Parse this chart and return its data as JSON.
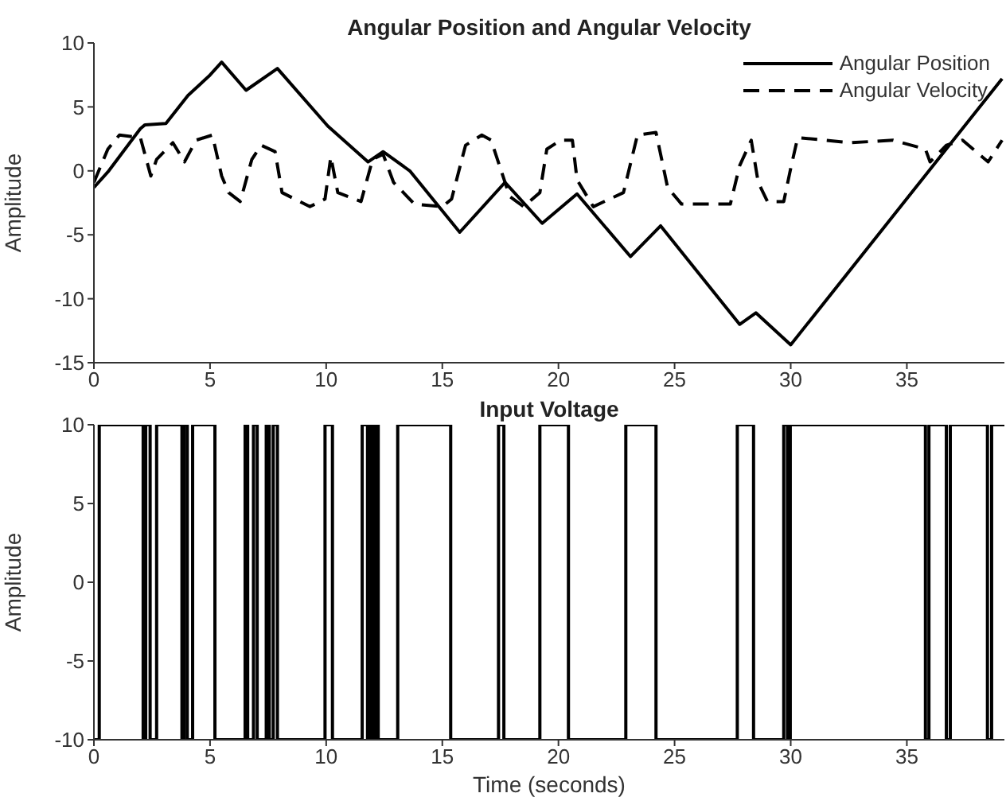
{
  "chart_data": [
    {
      "type": "line",
      "title": "Angular Position and Angular Velocity",
      "ylabel": "Amplitude",
      "xlim": [
        0,
        39.2
      ],
      "xticks": [
        0,
        5,
        10,
        15,
        20,
        25,
        30,
        35
      ],
      "ylim": [
        -15,
        10
      ],
      "yticks": [
        -15,
        -10,
        -5,
        0,
        5,
        10
      ],
      "legend": "top right",
      "series": [
        {
          "name": "Angular Position",
          "color": "#000000",
          "line_style": "solid",
          "x": [
            0,
            0.64,
            2,
            2.2,
            3.1,
            4.05,
            4.95,
            5.5,
            6.55,
            7.9,
            10.07,
            11.8,
            12.45,
            13.6,
            15.75,
            17.7,
            19.3,
            20.8,
            23.1,
            24.4,
            27.8,
            28.5,
            30,
            39.1
          ],
          "values": [
            -1.3,
            0,
            3.3,
            3.6,
            3.7,
            5.9,
            7.4,
            8.5,
            6.3,
            8,
            3.5,
            0.7,
            1.5,
            0,
            -4.8,
            -0.9,
            -4.1,
            -1.8,
            -6.7,
            -4.3,
            -12,
            -11.1,
            -13.6,
            7.2
          ]
        },
        {
          "name": "Angular Velocity",
          "color": "#000000",
          "line_style": "dashed",
          "x": [
            0,
            0.6,
            1.1,
            2,
            2.45,
            2.7,
            3.4,
            3.9,
            4.4,
            5.1,
            5.5,
            5.8,
            6.3,
            6.8,
            7.2,
            7.8,
            8.1,
            9.3,
            9.95,
            10.2,
            10.5,
            11.5,
            12,
            12.45,
            12.9,
            13.8,
            15,
            15.4,
            16,
            16.7,
            17.1,
            17.9,
            18.5,
            19.2,
            19.5,
            20.1,
            20.6,
            20.8,
            21.5,
            22.8,
            23.4,
            24.2,
            24.7,
            25.3,
            27.4,
            27.8,
            28.3,
            28.6,
            29,
            29.7,
            30,
            30.3,
            32.6,
            34.4,
            35.8,
            36,
            36.7,
            37.4,
            38.5,
            39.1
          ],
          "values": [
            -0.9,
            1.7,
            2.8,
            2.6,
            -0.4,
            0.9,
            2.2,
            0.7,
            2.4,
            2.8,
            -0.4,
            -1.7,
            -2.4,
            0.9,
            2,
            1.5,
            -1.7,
            -2.8,
            -2.2,
            1.1,
            -1.7,
            -2.4,
            0.9,
            1.3,
            -0.9,
            -2.6,
            -2.8,
            -2.2,
            2,
            2.8,
            2.4,
            -2,
            -2.8,
            -1.7,
            1.7,
            2.4,
            2.4,
            -0.7,
            -2.8,
            -1.7,
            2.8,
            3,
            -1.3,
            -2.6,
            -2.6,
            0.4,
            2.4,
            -0.9,
            -2.4,
            -2.4,
            0.2,
            2.6,
            2.2,
            2.4,
            1.7,
            0.7,
            2,
            2.4,
            0.7,
            2.4
          ]
        }
      ]
    },
    {
      "type": "step",
      "title": "Input Voltage",
      "xlabel": "Time (seconds)",
      "ylabel": "Amplitude",
      "xlim": [
        0,
        39.2
      ],
      "xticks": [
        0,
        5,
        10,
        15,
        20,
        25,
        30,
        35
      ],
      "ylim": [
        -10,
        10
      ],
      "yticks": [
        -10,
        -5,
        0,
        5,
        10
      ],
      "series": [
        {
          "color": "#000000",
          "x": [
            0,
            0.23,
            2.12,
            2.23,
            2.42,
            2.7,
            3.79,
            3.88,
            4.02,
            4.25,
            5.21,
            6.51,
            6.62,
            6.87,
            7.03,
            7.42,
            7.55,
            7.72,
            7.9,
            9.95,
            10.27,
            11.55,
            11.78,
            11.89,
            11.99,
            12.12,
            12.24,
            13.08,
            15.36,
            17.42,
            17.65,
            19.2,
            20.43,
            22.9,
            24.2,
            27.7,
            28.4,
            29.7,
            29.86,
            29.98,
            35.8,
            35.95,
            36.7,
            36.87,
            38.47,
            38.65,
            39.2
          ],
          "values": [
            -10,
            10,
            -10,
            10,
            -10,
            10,
            -10,
            10,
            -10,
            10,
            -10,
            10,
            -10,
            10,
            -10,
            10,
            -10,
            10,
            -10,
            10,
            -10,
            10,
            -10,
            10,
            -10,
            10,
            -10,
            10,
            -10,
            10,
            -10,
            10,
            -10,
            10,
            -10,
            10,
            -10,
            10,
            -10,
            10,
            -10,
            10,
            -10,
            10,
            -10,
            10,
            10
          ]
        }
      ]
    }
  ]
}
